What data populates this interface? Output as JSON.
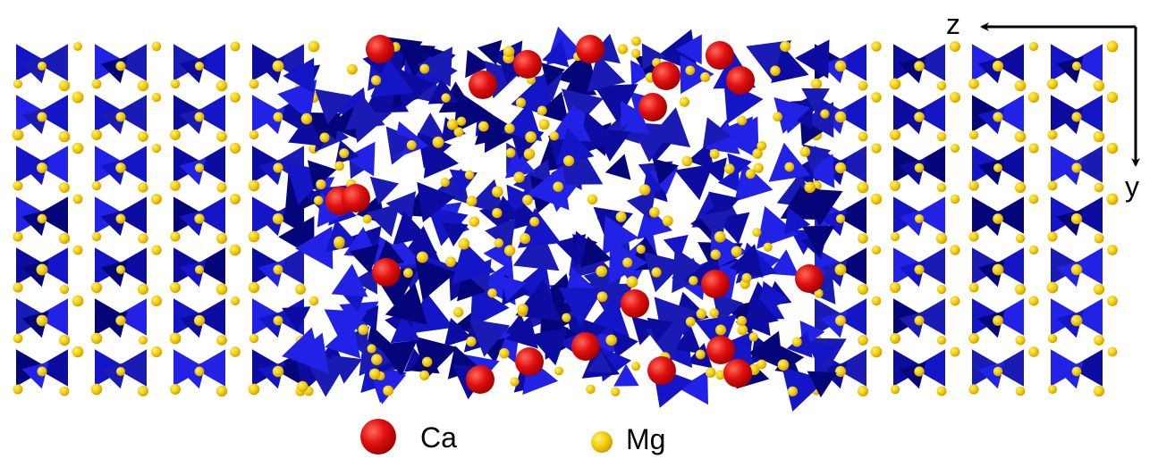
{
  "axes": {
    "horizontal": "z",
    "vertical": "y"
  },
  "legend": [
    {
      "label": "Ca"
    },
    {
      "label": "Mg"
    }
  ]
}
